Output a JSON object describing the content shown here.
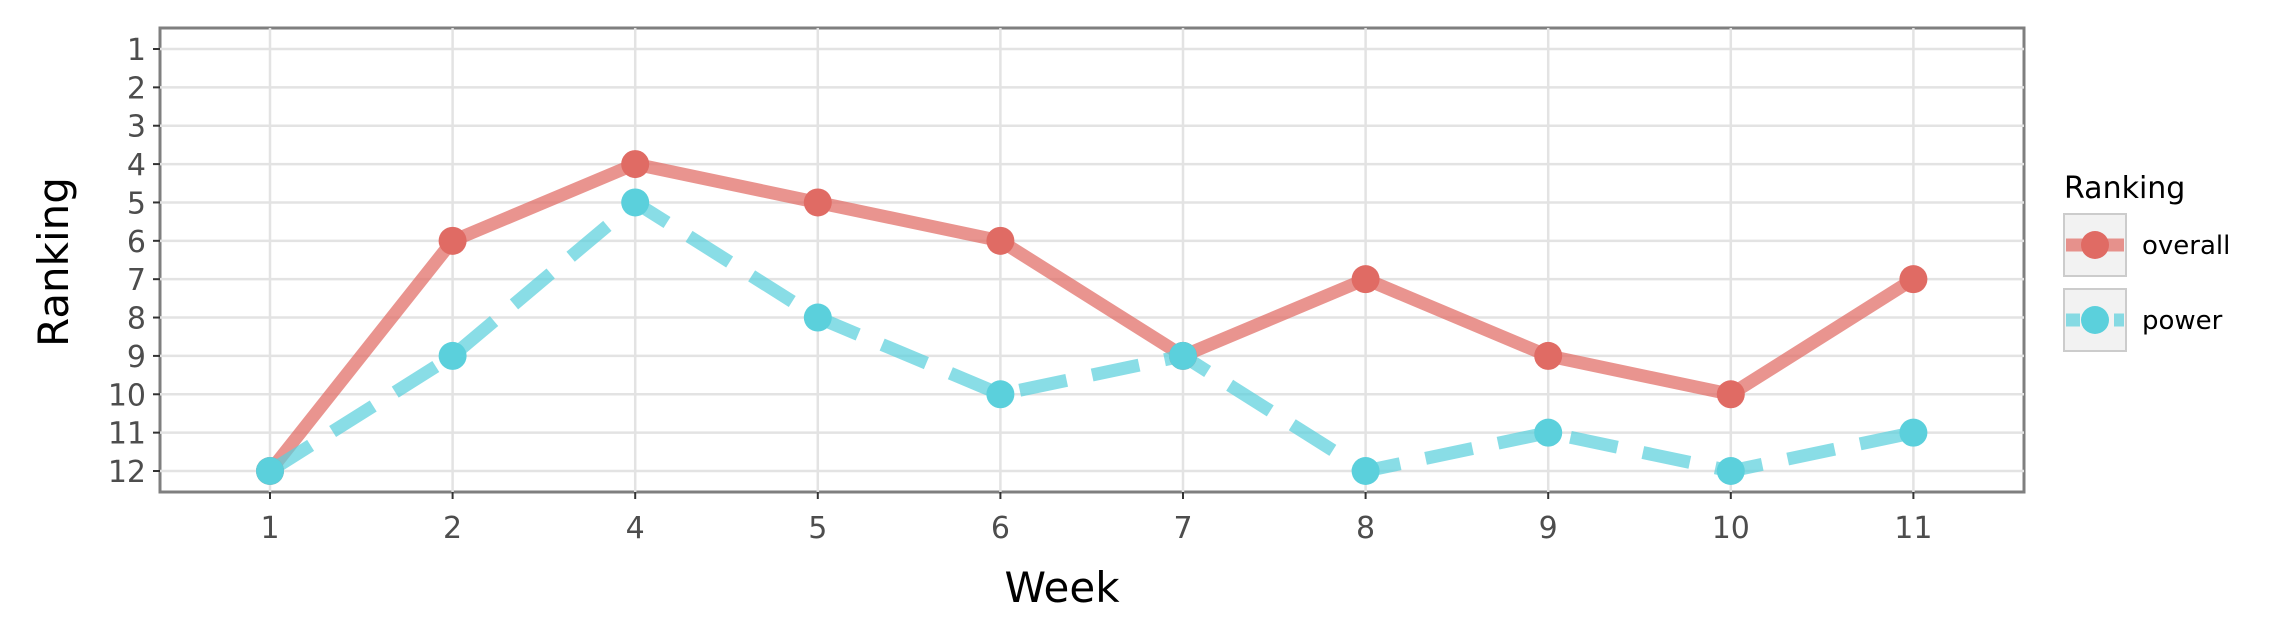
{
  "chart_data": {
    "type": "line",
    "xlabel": "Week",
    "ylabel": "Ranking",
    "x": [
      "1",
      "2",
      "4",
      "5",
      "6",
      "7",
      "8",
      "9",
      "10",
      "11"
    ],
    "y_ticks": [
      "1",
      "2",
      "3",
      "4",
      "5",
      "6",
      "7",
      "8",
      "9",
      "10",
      "11",
      "12"
    ],
    "ylim": [
      1,
      12
    ],
    "y_reversed": true,
    "grid": true,
    "legend": {
      "title": "Ranking",
      "placement": "right"
    },
    "series": [
      {
        "name": "overall",
        "color": "#e06b64",
        "line_style": "solid",
        "values": [
          12,
          6,
          4,
          5,
          6,
          9,
          7,
          9,
          10,
          7
        ]
      },
      {
        "name": "power",
        "color": "#5bd0dc",
        "line_style": "dashed",
        "values": [
          12,
          9,
          5,
          8,
          10,
          9,
          12,
          11,
          12,
          11
        ]
      }
    ]
  }
}
